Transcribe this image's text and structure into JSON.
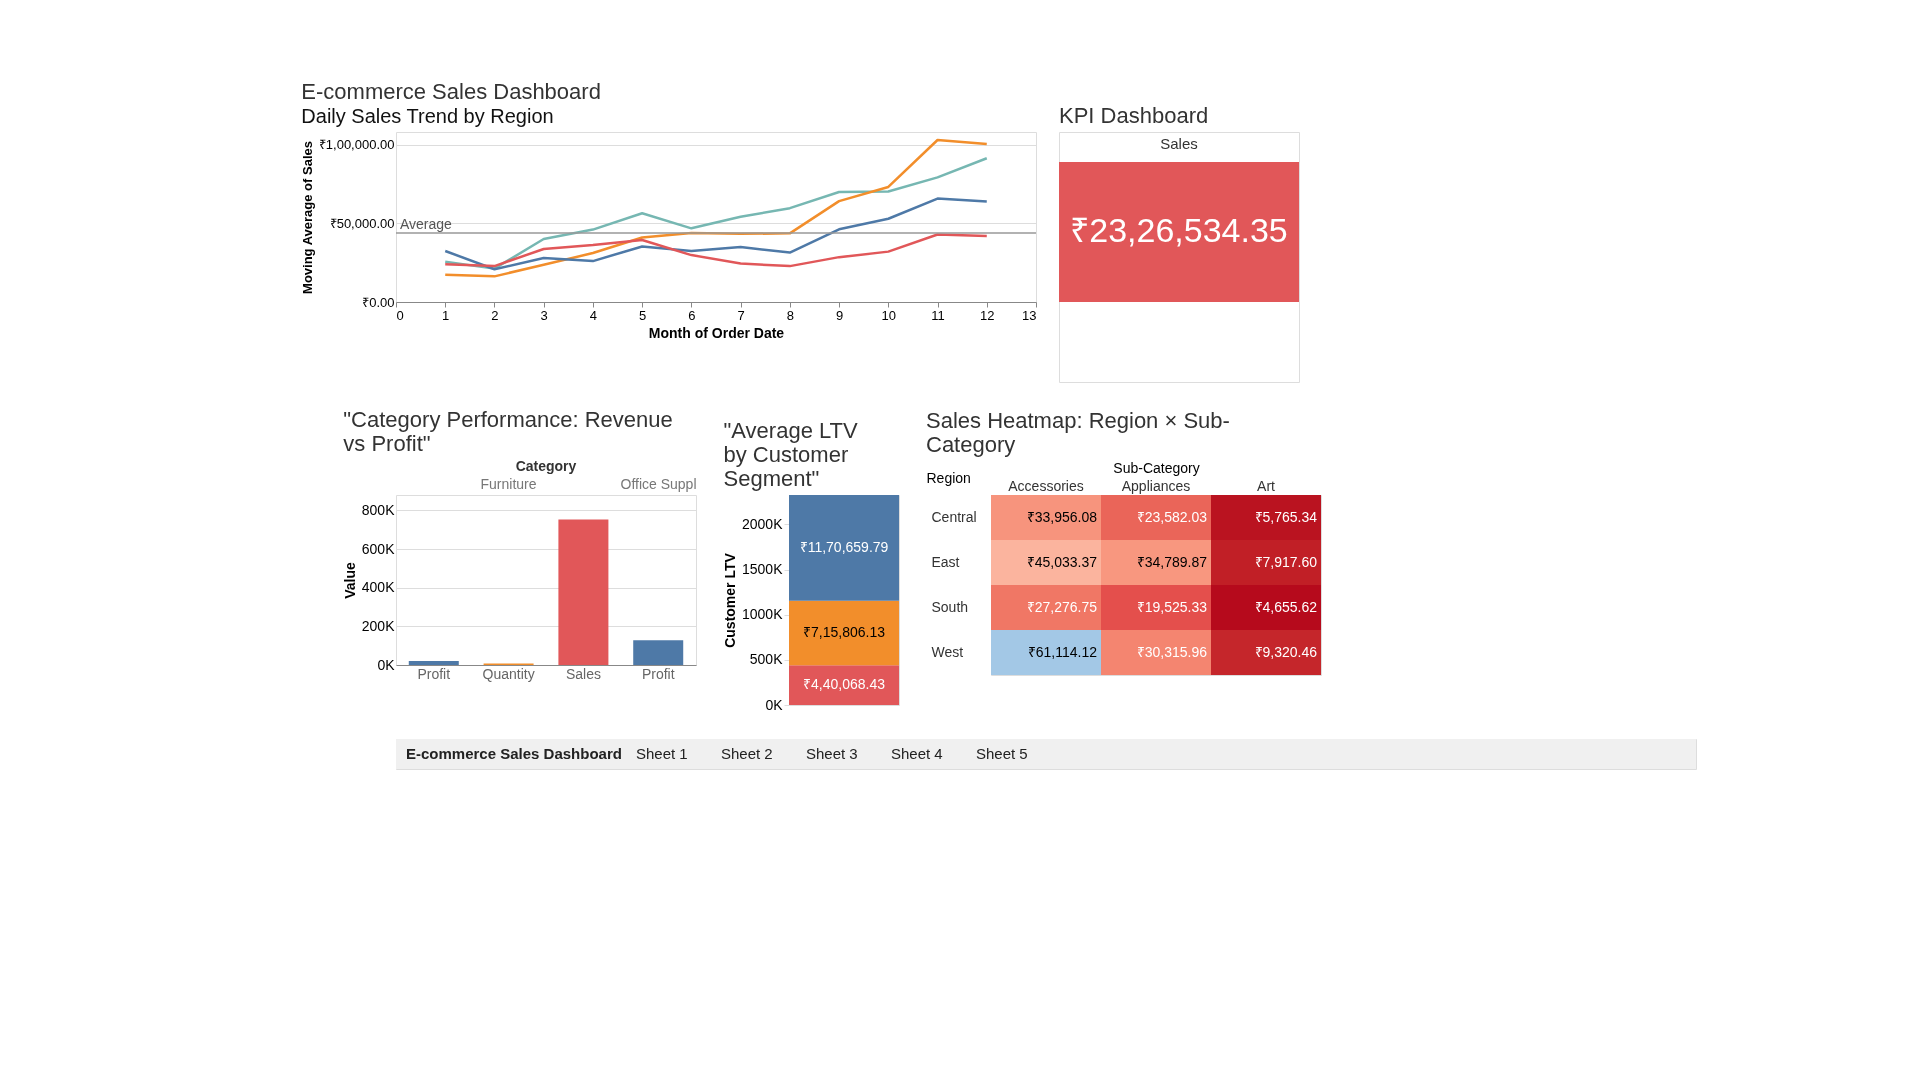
{
  "chart_data": [
    {
      "type": "line",
      "title": "E-commerce Sales Dashboard",
      "subtitle": "Daily Sales Trend by Region",
      "xlabel": "Month of Order Date",
      "ylabel": "Moving Average of Sales",
      "x": [
        1,
        2,
        3,
        4,
        5,
        6,
        7,
        8,
        9,
        10,
        11,
        12
      ],
      "series": [
        {
          "color": "#76b7b2",
          "values": [
            25600,
            21200,
            40000,
            46000,
            56400,
            46800,
            54200,
            59600,
            69900,
            70200,
            79200,
            91300
          ]
        },
        {
          "color": "#f28e2b",
          "values": [
            17300,
            16300,
            23700,
            31100,
            41000,
            43900,
            43300,
            43600,
            64100,
            73100,
            102900,
            100300
          ]
        },
        {
          "color": "#4e79a7",
          "values": [
            32400,
            20800,
            27900,
            26000,
            35300,
            32400,
            34900,
            31400,
            46200,
            52900,
            65700,
            63800
          ]
        },
        {
          "color": "#e15759",
          "values": [
            24000,
            22800,
            33700,
            36200,
            39400,
            29800,
            24400,
            22800,
            28500,
            32000,
            42900,
            42000
          ]
        }
      ],
      "xlim": [
        0,
        13
      ],
      "xticks": [
        0,
        1,
        2,
        3,
        4,
        5,
        6,
        7,
        8,
        9,
        10,
        11,
        12,
        13
      ],
      "ylim": [
        0,
        108000
      ],
      "yticks": [
        {
          "value": 0,
          "label": "₹0.00"
        },
        {
          "value": 50000,
          "label": "₹50,000.00"
        },
        {
          "value": 100000,
          "label": "₹1,00,000.00"
        }
      ],
      "ref_lines": [
        {
          "axis": "y",
          "value": 43900,
          "label": "Average",
          "color": "#999999"
        }
      ],
      "grid": "y",
      "legend": false,
      "marker": "none",
      "line_style": "solid"
    },
    {
      "type": "other",
      "title": "KPI Dashboard",
      "color": "#e15759",
      "annotations": [
        "Sales",
        "₹23,26,534.35"
      ]
    },
    {
      "type": "bar",
      "title": "\"Category Performance: Revenue vs Profit\"",
      "xlabel": "Category",
      "ylabel": "Value",
      "categories": [
        "Profit",
        "Quantity",
        "Sales",
        "Profit"
      ],
      "values": [
        21000,
        8000,
        753000,
        128000
      ],
      "colors": [
        "#4e79a7",
        "#f28e2b",
        "#e15759",
        "#4e79a7"
      ],
      "annotations": [
        "Furniture",
        "Office Suppl"
      ],
      "ylim": [
        0,
        880000
      ],
      "yticks": [
        {
          "value": 0,
          "label": "0K"
        },
        {
          "value": 200000,
          "label": "200K"
        },
        {
          "value": 400000,
          "label": "400K"
        },
        {
          "value": 600000,
          "label": "600K"
        },
        {
          "value": 800000,
          "label": "800K"
        }
      ],
      "grid": "y"
    },
    {
      "type": "bar",
      "title": "\"Average LTV by Customer Segment\"",
      "ylabel": "Customer LTV",
      "stacked": true,
      "categories": [
        null
      ],
      "series": [
        {
          "color": "#e15759",
          "values": [
            440068.43
          ],
          "value_labels": [
            "₹4,40,068.43"
          ]
        },
        {
          "color": "#f28e2b",
          "values": [
            715806.13
          ],
          "value_labels": [
            "₹7,15,806.13"
          ]
        },
        {
          "color": "#4e79a7",
          "values": [
            1170659.79
          ],
          "value_labels": [
            "₹11,70,659.79"
          ]
        }
      ],
      "ylim": [
        0,
        2326534.35
      ],
      "yticks": [
        {
          "value": 0,
          "label": "0K"
        },
        {
          "value": 500000,
          "label": "500K"
        },
        {
          "value": 1000000,
          "label": "1000K"
        },
        {
          "value": 1500000,
          "label": "1500K"
        },
        {
          "value": 2000000,
          "label": "2000K"
        }
      ],
      "grid": false
    },
    {
      "type": "heatmap",
      "title": "Sales Heatmap: Region × Sub-Category",
      "xlabel": "Sub-Category",
      "ylabel": "Region",
      "categories": [
        "Accessories",
        "Appliances",
        "Art"
      ],
      "y_categories": [
        "Central",
        "East",
        "South",
        "West"
      ],
      "cells": [
        [
          33956.08,
          23582.03,
          5765.34
        ],
        [
          45033.37,
          34789.87,
          7917.6
        ],
        [
          27276.75,
          19525.33,
          4655.62
        ],
        [
          61114.12,
          30315.96,
          9320.46
        ]
      ],
      "cell_labels": [
        [
          "₹33,956.08",
          "₹23,582.03",
          "₹5,765.34"
        ],
        [
          "₹45,033.37",
          "₹34,789.87",
          "₹7,917.60"
        ],
        [
          "₹27,276.75",
          "₹19,525.33",
          "₹4,655.62"
        ],
        [
          "₹61,114.12",
          "₹30,315.96",
          "₹9,320.46"
        ]
      ],
      "legend": false
    },
    {
      "type": "other",
      "annotations": [
        "E-commerce Sales Dashboard",
        "Sheet 1",
        "Sheet 2",
        "Sheet 3",
        "Sheet 4",
        "Sheet 5"
      ]
    }
  ]
}
